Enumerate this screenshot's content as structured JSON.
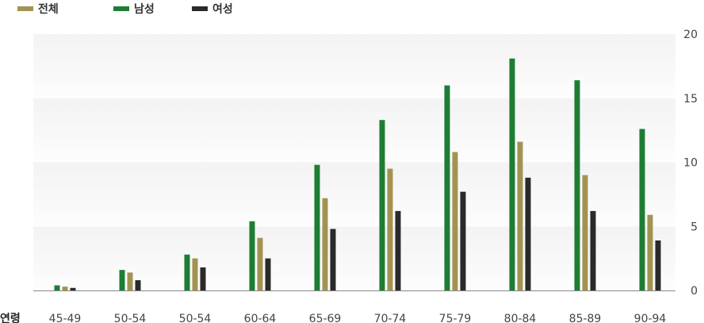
{
  "chart_data": {
    "type": "bar",
    "xlabel": "연령",
    "categories": [
      "45-49",
      "50-54",
      "50-54",
      "60-64",
      "65-69",
      "70-74",
      "75-79",
      "80-84",
      "85-89",
      "90-94"
    ],
    "series": [
      {
        "name": "남성",
        "color": "#1e7d34",
        "values": [
          0.4,
          1.6,
          2.8,
          5.4,
          9.8,
          13.3,
          16.0,
          18.1,
          16.4,
          12.6
        ]
      },
      {
        "name": "전체",
        "color": "#a39352",
        "values": [
          0.3,
          1.4,
          2.5,
          4.1,
          7.2,
          9.5,
          10.8,
          11.6,
          9.0,
          5.9
        ]
      },
      {
        "name": "여성",
        "color": "#2a2a2a",
        "values": [
          0.2,
          0.8,
          1.8,
          2.5,
          4.8,
          6.2,
          7.7,
          8.8,
          6.2,
          3.9
        ]
      }
    ],
    "legend": {
      "position": "top-left",
      "items": [
        {
          "name": "전체",
          "color": "#a39352"
        },
        {
          "name": "남성",
          "color": "#1e7d34"
        },
        {
          "name": "여성",
          "color": "#2a2a2a"
        }
      ]
    },
    "ylim": [
      0,
      20
    ],
    "yticks": [
      0,
      5,
      10,
      15,
      20
    ],
    "y_axis_side": "right",
    "grid": true
  }
}
